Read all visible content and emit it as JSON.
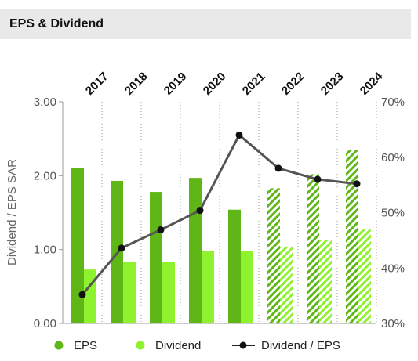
{
  "header": {
    "title": "EPS & Dividend"
  },
  "chart_data": {
    "type": "bar",
    "title": "EPS & Dividend",
    "ylabel": "Dividend / EPS SAR",
    "y2label": "",
    "categories": [
      "2017",
      "2018",
      "2019",
      "2020",
      "2021",
      "2022",
      "2023",
      "2024"
    ],
    "ylim": [
      0,
      3
    ],
    "y_ticks": [
      "0.00",
      "1.00",
      "2.00",
      "3.00"
    ],
    "y2lim": [
      30,
      70
    ],
    "y2_ticks": [
      "30%",
      "40%",
      "50%",
      "60%",
      "70%"
    ],
    "forecast_from_index": 5,
    "series": [
      {
        "name": "EPS",
        "type": "bar",
        "color": "#5eb617",
        "values": [
          2.1,
          1.93,
          1.78,
          1.97,
          1.54,
          1.83,
          2.02,
          2.35
        ]
      },
      {
        "name": "Dividend",
        "type": "bar",
        "color": "#8ff22e",
        "values": [
          0.73,
          0.83,
          0.83,
          0.98,
          0.98,
          1.04,
          1.13,
          1.27
        ]
      },
      {
        "name": "Dividend / EPS",
        "type": "line",
        "axis": "right",
        "color": "#555555",
        "values": [
          35.2,
          43.6,
          46.9,
          50.4,
          64.0,
          58.0,
          56.0,
          55.2
        ]
      }
    ],
    "legend": {
      "position": "bottom"
    },
    "grid": {
      "vertical_dotted": true
    }
  }
}
